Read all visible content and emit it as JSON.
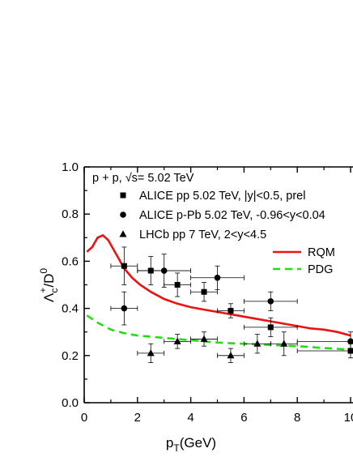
{
  "chart_data": {
    "type": "scatter",
    "xlabel": "p",
    "xlabel_sub": "T",
    "xlabel_unit": "(GeV)",
    "ylabel": "Λ",
    "ylabel_sub": "c",
    "ylabel_sup": "+",
    "ylabel_tail": "/D",
    "ylabel_tail_sup": "0",
    "xlim": [
      0,
      10
    ],
    "ylim": [
      0.0,
      1.0
    ],
    "x_ticks": [
      "0",
      "2",
      "4",
      "6",
      "8",
      "10"
    ],
    "y_ticks": [
      "0.0",
      "0.2",
      "0.4",
      "0.6",
      "0.8",
      "1.0"
    ],
    "annotation": "p + p, √s= 5.02 TeV",
    "legend_position": "top-right",
    "series": [
      {
        "name": "ALICE pp 5.02 TeV, |y|<0.5, prel",
        "marker": "square",
        "color": "#000000",
        "points": [
          {
            "x": 1.5,
            "y": 0.58,
            "xerr": 0.5,
            "yerr": 0.08
          },
          {
            "x": 2.5,
            "y": 0.56,
            "xerr": 0.5,
            "yerr": 0.06
          },
          {
            "x": 3.5,
            "y": 0.5,
            "xerr": 0.5,
            "yerr": 0.05
          },
          {
            "x": 4.5,
            "y": 0.47,
            "xerr": 0.5,
            "yerr": 0.04
          },
          {
            "x": 5.5,
            "y": 0.39,
            "xerr": 0.5,
            "yerr": 0.03
          },
          {
            "x": 7.0,
            "y": 0.32,
            "xerr": 1.0,
            "yerr": 0.04
          },
          {
            "x": 10.0,
            "y": 0.22,
            "xerr": 2.0,
            "yerr": 0.03
          }
        ]
      },
      {
        "name": "ALICE p-Pb 5.02 TeV, -0.96<y<0.04",
        "marker": "circle",
        "color": "#000000",
        "points": [
          {
            "x": 1.5,
            "y": 0.4,
            "xerr": 0.5,
            "yerr": 0.07
          },
          {
            "x": 3.0,
            "y": 0.56,
            "xerr": 1.0,
            "yerr": 0.07
          },
          {
            "x": 5.0,
            "y": 0.53,
            "xerr": 1.0,
            "yerr": 0.05
          },
          {
            "x": 7.0,
            "y": 0.43,
            "xerr": 1.0,
            "yerr": 0.04
          },
          {
            "x": 10.0,
            "y": 0.26,
            "xerr": 2.0,
            "yerr": 0.04
          }
        ]
      },
      {
        "name": "LHCb pp 7 TeV, 2<y<4.5",
        "marker": "triangle",
        "color": "#000000",
        "points": [
          {
            "x": 2.5,
            "y": 0.21,
            "xerr": 0.5,
            "yerr": 0.04
          },
          {
            "x": 3.5,
            "y": 0.26,
            "xerr": 0.5,
            "yerr": 0.03
          },
          {
            "x": 4.5,
            "y": 0.27,
            "xerr": 0.5,
            "yerr": 0.03
          },
          {
            "x": 5.5,
            "y": 0.2,
            "xerr": 0.5,
            "yerr": 0.03
          },
          {
            "x": 6.5,
            "y": 0.25,
            "xerr": 0.5,
            "yerr": 0.04
          },
          {
            "x": 7.5,
            "y": 0.25,
            "xerr": 0.5,
            "yerr": 0.05
          }
        ]
      },
      {
        "name": "RQM",
        "type": "line",
        "style": "solid",
        "color": "#ee1111",
        "x": [
          0.1,
          0.3,
          0.5,
          0.7,
          0.9,
          1.1,
          1.3,
          1.5,
          1.8,
          2.1,
          2.5,
          3.0,
          3.5,
          4.0,
          4.5,
          5.0,
          5.5,
          6.0,
          6.5,
          7.0,
          7.5,
          8.0,
          8.5,
          9.0,
          9.5,
          10.0
        ],
        "y": [
          0.64,
          0.66,
          0.7,
          0.71,
          0.69,
          0.65,
          0.61,
          0.57,
          0.53,
          0.5,
          0.47,
          0.44,
          0.42,
          0.405,
          0.395,
          0.385,
          0.375,
          0.365,
          0.355,
          0.345,
          0.335,
          0.325,
          0.315,
          0.31,
          0.3,
          0.285
        ]
      },
      {
        "name": "PDG",
        "type": "line",
        "style": "dashed",
        "color": "#22dd11",
        "x": [
          0.1,
          0.5,
          1.0,
          1.5,
          2.0,
          3.0,
          4.0,
          5.0,
          6.0,
          7.0,
          8.0,
          9.0,
          10.0
        ],
        "y": [
          0.37,
          0.34,
          0.31,
          0.295,
          0.285,
          0.275,
          0.265,
          0.255,
          0.25,
          0.245,
          0.24,
          0.232,
          0.225
        ]
      }
    ]
  }
}
